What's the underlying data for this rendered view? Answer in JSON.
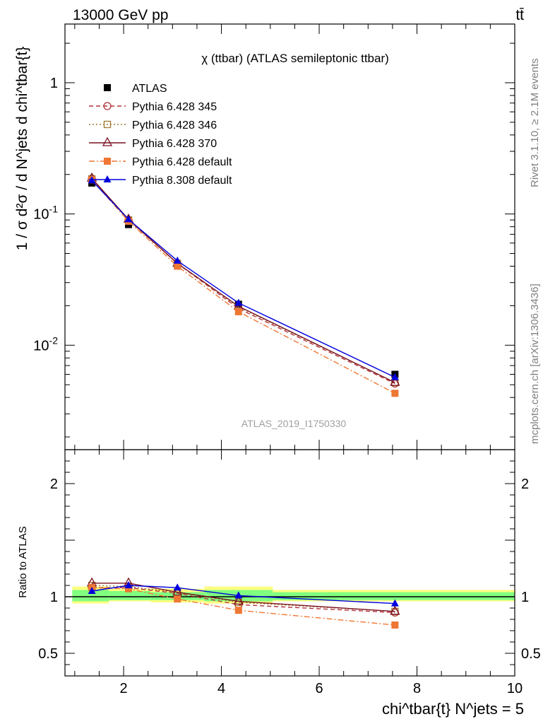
{
  "header": {
    "energy_label": "13000 GeV pp",
    "process_label": "tt̄"
  },
  "side_labels": {
    "rivet": "Rivet 3.1.10, ≥ 2.1M events",
    "mcplots": "mcplots.cern.ch [arXiv:1306.3436]"
  },
  "watermark": "ATLAS_2019_I1750330",
  "chart_data": [
    {
      "type": "line",
      "title": "χ (ttbar) (ATLAS semileptonic ttbar)",
      "ylabel": "1 / σ d²σ / d N^jets d chi^tbar{t}",
      "yscale": "log",
      "xlim": [
        0.8,
        10.0
      ],
      "ylim": [
        0.0016,
        2.8
      ],
      "y_ticks": [
        {
          "v": 1,
          "label": "1"
        },
        {
          "v": 0.1,
          "label": "10^-1"
        },
        {
          "v": 0.01,
          "label": "10^-2"
        }
      ],
      "legend_position": "top-left",
      "x": [
        1.35,
        2.1,
        3.1,
        4.35,
        7.55
      ],
      "series": [
        {
          "name": "ATLAS",
          "color": "#000000",
          "marker": "square",
          "dash": "",
          "line": false,
          "values": [
            0.172,
            0.083,
            0.041,
            0.0205,
            0.006
          ]
        },
        {
          "name": "Pythia 6.428 345",
          "color": "#b2323a",
          "marker": "circle-open",
          "dash": "6,4",
          "values": [
            0.186,
            0.09,
            0.042,
            0.019,
            0.0051
          ]
        },
        {
          "name": "Pythia 6.428 346",
          "color": "#a07a30",
          "marker": "square-open",
          "dash": "2,3",
          "values": [
            0.185,
            0.09,
            0.042,
            0.0195,
            0.0052
          ]
        },
        {
          "name": "Pythia 6.428 370",
          "color": "#7a1020",
          "marker": "triangle-open",
          "dash": "",
          "values": [
            0.187,
            0.091,
            0.042,
            0.0198,
            0.0052
          ]
        },
        {
          "name": "Pythia 6.428 default",
          "color": "#ee7733",
          "marker": "square",
          "dash": "8,3,2,3",
          "values": [
            0.182,
            0.088,
            0.04,
            0.018,
            0.0043
          ]
        },
        {
          "name": "Pythia 8.308 default",
          "color": "#0000dd",
          "marker": "triangle",
          "dash": "",
          "values": [
            0.18,
            0.091,
            0.044,
            0.021,
            0.0057
          ]
        }
      ]
    },
    {
      "type": "line",
      "xlabel": "chi^tbar{t} N^jets = 5",
      "ylabel": "Ratio to ATLAS",
      "xlim": [
        0.8,
        10.0
      ],
      "ylim": [
        0.3,
        2.3
      ],
      "x_ticks": [
        2,
        4,
        6,
        8,
        10
      ],
      "y_ticks": [
        {
          "v": 0.5,
          "label": "0.5"
        },
        {
          "v": 1,
          "label": "1"
        },
        {
          "v": 2,
          "label": "2"
        }
      ],
      "uncertainty_bands": [
        {
          "x0": 0.95,
          "x1": 1.7,
          "yellow": [
            0.94,
            1.09
          ],
          "green": [
            0.96,
            1.06
          ]
        },
        {
          "x0": 1.7,
          "x1": 2.55,
          "yellow": [
            0.96,
            1.07
          ],
          "green": [
            0.97,
            1.05
          ]
        },
        {
          "x0": 2.55,
          "x1": 3.65,
          "yellow": [
            0.95,
            1.07
          ],
          "green": [
            0.97,
            1.04
          ]
        },
        {
          "x0": 3.65,
          "x1": 5.05,
          "yellow": [
            0.94,
            1.09
          ],
          "green": [
            0.96,
            1.06
          ]
        },
        {
          "x0": 5.05,
          "x1": 10.0,
          "yellow": [
            0.96,
            1.06
          ],
          "green": [
            0.97,
            1.04
          ]
        }
      ],
      "x": [
        1.35,
        2.1,
        3.1,
        4.35,
        7.55
      ],
      "series": [
        {
          "name": "Pythia 6.428 345",
          "color": "#b2323a",
          "marker": "circle-open",
          "dash": "6,4",
          "values": [
            1.08,
            1.08,
            1.03,
            0.93,
            0.86
          ]
        },
        {
          "name": "Pythia 6.428 346",
          "color": "#a07a30",
          "marker": "square-open",
          "dash": "2,3",
          "values": [
            1.1,
            1.09,
            1.04,
            0.95,
            0.87
          ]
        },
        {
          "name": "Pythia 6.428 370",
          "color": "#7a1020",
          "marker": "triangle-open",
          "dash": "",
          "values": [
            1.12,
            1.12,
            1.04,
            0.96,
            0.87
          ]
        },
        {
          "name": "Pythia 6.428 default",
          "color": "#ee7733",
          "marker": "square",
          "dash": "8,3,2,3",
          "values": [
            1.08,
            1.07,
            0.98,
            0.88,
            0.75
          ]
        },
        {
          "name": "Pythia 8.308 default",
          "color": "#0000dd",
          "marker": "triangle",
          "dash": "",
          "values": [
            1.05,
            1.1,
            1.08,
            1.01,
            0.94
          ]
        }
      ]
    }
  ]
}
